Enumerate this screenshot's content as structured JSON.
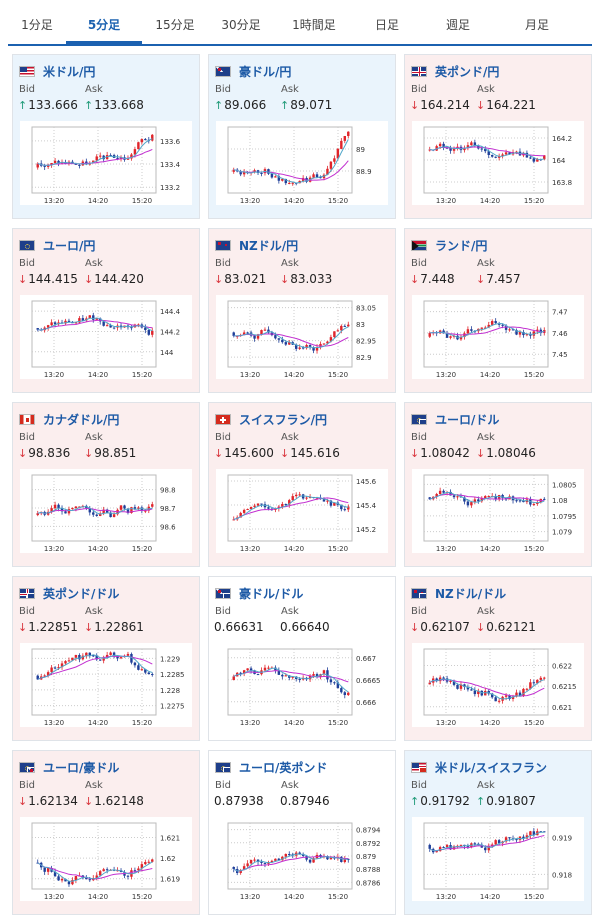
{
  "tabs": [
    {
      "label": "1分足",
      "active": false
    },
    {
      "label": "5分足",
      "active": true
    },
    {
      "label": "15分足",
      "active": false
    },
    {
      "label": "30分足",
      "active": false
    },
    {
      "label": "1時間足",
      "active": false
    },
    {
      "label": "日足",
      "active": false
    },
    {
      "label": "週足",
      "active": false
    },
    {
      "label": "月足",
      "active": false
    }
  ],
  "labels": {
    "bid": "Bid",
    "ask": "Ask"
  },
  "colors": {
    "up_arrow": "#1f9a78",
    "down_arrow": "#d9363e",
    "bull_candle": "#e0252b",
    "bear_candle": "#1f3f99",
    "ma_short": "#52a7c9",
    "ma_long": "#c22fd0",
    "title": "#1d5aa6"
  },
  "time_ticks": [
    "13:20",
    "14:20",
    "15:20"
  ],
  "pairs": [
    {
      "name": "米ドル/円",
      "icon": "flag-us-icon",
      "trend": "up",
      "bid": "133.666",
      "ask": "133.668",
      "bid_dir": "up",
      "ask_dir": "up",
      "y_ticks": [
        "133.6",
        "133.4",
        "133.2"
      ],
      "ylim": [
        133.15,
        133.72
      ]
    },
    {
      "name": "豪ドル/円",
      "icon": "flag-au-icon",
      "trend": "up",
      "bid": "89.066",
      "ask": "89.071",
      "bid_dir": "up",
      "ask_dir": "up",
      "y_ticks": [
        "89",
        "88.9"
      ],
      "ylim": [
        88.8,
        89.1
      ]
    },
    {
      "name": "英ポンド/円",
      "icon": "flag-gb-icon",
      "trend": "down",
      "bid": "164.214",
      "ask": "164.221",
      "bid_dir": "down",
      "ask_dir": "down",
      "y_ticks": [
        "164.2",
        "164",
        "163.8"
      ],
      "ylim": [
        163.7,
        164.3
      ]
    },
    {
      "name": "ユーロ/円",
      "icon": "flag-eu-icon",
      "trend": "down",
      "bid": "144.415",
      "ask": "144.420",
      "bid_dir": "down",
      "ask_dir": "down",
      "y_ticks": [
        "144.4",
        "144.2",
        "144"
      ],
      "ylim": [
        143.85,
        144.5
      ]
    },
    {
      "name": "NZドル/円",
      "icon": "flag-nz-icon",
      "trend": "down",
      "bid": "83.021",
      "ask": "83.033",
      "bid_dir": "down",
      "ask_dir": "down",
      "y_ticks": [
        "83.05",
        "83",
        "82.95",
        "82.9"
      ],
      "ylim": [
        82.87,
        83.07
      ]
    },
    {
      "name": "ランド/円",
      "icon": "flag-za-icon",
      "trend": "down",
      "bid": "7.448",
      "ask": "7.457",
      "bid_dir": "down",
      "ask_dir": "down",
      "y_ticks": [
        "7.47",
        "7.46",
        "7.45"
      ],
      "ylim": [
        7.444,
        7.475
      ]
    },
    {
      "name": "カナダドル/円",
      "icon": "flag-ca-icon",
      "trend": "down",
      "bid": "98.836",
      "ask": "98.851",
      "bid_dir": "down",
      "ask_dir": "down",
      "y_ticks": [
        "98.8",
        "98.7",
        "98.6"
      ],
      "ylim": [
        98.52,
        98.88
      ]
    },
    {
      "name": "スイスフラン/円",
      "icon": "flag-ch-icon",
      "trend": "down",
      "bid": "145.600",
      "ask": "145.616",
      "bid_dir": "down",
      "ask_dir": "down",
      "y_ticks": [
        "145.6",
        "145.4",
        "145.2"
      ],
      "ylim": [
        145.1,
        145.65
      ]
    },
    {
      "name": "ユーロ/ドル",
      "icon": "flag-eu-us-icon",
      "trend": "down",
      "bid": "1.08042",
      "ask": "1.08046",
      "bid_dir": "down",
      "ask_dir": "down",
      "y_ticks": [
        "1.0805",
        "1.08",
        "1.0795",
        "1.079"
      ],
      "ylim": [
        1.0787,
        1.0808
      ]
    },
    {
      "name": "英ポンド/ドル",
      "icon": "flag-gb-us-icon",
      "trend": "down",
      "bid": "1.22851",
      "ask": "1.22861",
      "bid_dir": "down",
      "ask_dir": "down",
      "y_ticks": [
        "1.229",
        "1.2285",
        "1.228",
        "1.2275"
      ],
      "ylim": [
        1.2272,
        1.2293
      ]
    },
    {
      "name": "豪ドル/ドル",
      "icon": "flag-au-us-icon",
      "trend": "plain",
      "bid": "0.66631",
      "ask": "0.66640",
      "bid_dir": "none",
      "ask_dir": "none",
      "y_ticks": [
        "0.667",
        "0.6665",
        "0.666"
      ],
      "ylim": [
        0.6657,
        0.6672
      ]
    },
    {
      "name": "NZドル/ドル",
      "icon": "flag-nz-us-icon",
      "trend": "down",
      "bid": "0.62107",
      "ask": "0.62121",
      "bid_dir": "down",
      "ask_dir": "down",
      "y_ticks": [
        "0.622",
        "0.6215",
        "0.621"
      ],
      "ylim": [
        0.6208,
        0.6224
      ]
    },
    {
      "name": "ユーロ/豪ドル",
      "icon": "flag-eu-au-icon",
      "trend": "down",
      "bid": "1.62134",
      "ask": "1.62148",
      "bid_dir": "down",
      "ask_dir": "down",
      "y_ticks": [
        "1.621",
        "1.62",
        "1.619"
      ],
      "ylim": [
        1.6185,
        1.6217
      ]
    },
    {
      "name": "ユーロ/英ポンド",
      "icon": "flag-eu-gb-icon",
      "trend": "plain",
      "bid": "0.87938",
      "ask": "0.87946",
      "bid_dir": "none",
      "ask_dir": "none",
      "y_ticks": [
        "0.8794",
        "0.8792",
        "0.879",
        "0.8788",
        "0.8786"
      ],
      "ylim": [
        0.8785,
        0.8795
      ]
    },
    {
      "name": "米ドル/スイスフラン",
      "icon": "flag-us-ch-icon",
      "trend": "up",
      "bid": "0.91792",
      "ask": "0.91807",
      "bid_dir": "up",
      "ask_dir": "up",
      "y_ticks": [
        "0.919",
        "0.918"
      ],
      "ylim": [
        0.9176,
        0.9194
      ]
    }
  ]
}
